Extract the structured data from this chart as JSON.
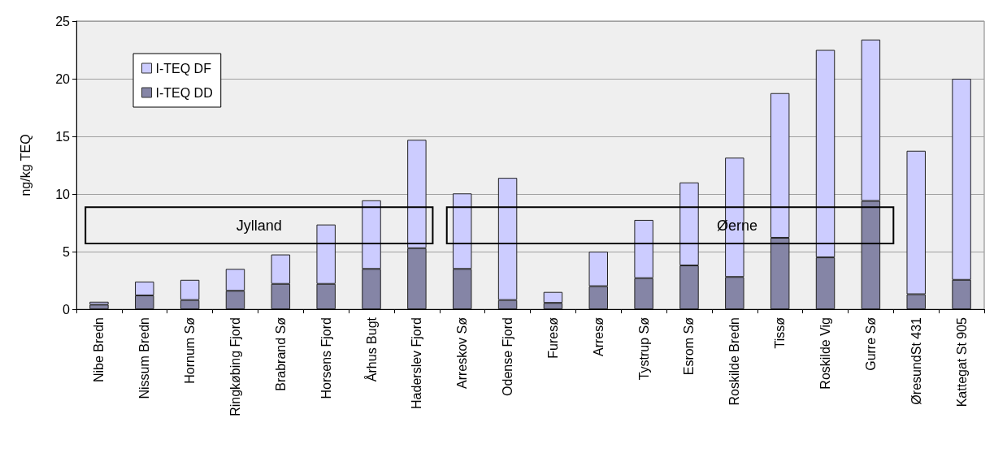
{
  "chart_data": {
    "type": "bar",
    "stacked": true,
    "ylabel": "ng/kg TEQ",
    "categories": [
      "Nibe Bredn",
      "Nissum Bredn",
      "Hornum Sø",
      "Ringkøbing Fjord",
      "Brabrand Sø",
      "Horsens Fjord",
      "Århus Bugt",
      "Haderslev Fjord",
      "Arreskov Sø",
      "Odense Fjord",
      "Furesø",
      "Arresø",
      "Tystrup Sø",
      "Esrom Sø",
      "Roskilde Bredn",
      "Tissø",
      "Roskilde Vig",
      "Gurre Sø",
      "ØresundSt 431",
      "Kattegat St 905"
    ],
    "series": [
      {
        "name": "I-TEQ DD",
        "color": "#8585a6",
        "values": [
          0.4,
          1.2,
          0.8,
          1.6,
          2.2,
          2.2,
          3.5,
          5.3,
          3.5,
          0.8,
          0.55,
          2.0,
          2.7,
          3.8,
          2.8,
          6.2,
          4.5,
          9.4,
          1.3,
          2.55
        ]
      },
      {
        "name": "I-TEQ DF",
        "color": "#ccccff",
        "values": [
          0.25,
          1.2,
          1.75,
          1.9,
          2.55,
          5.15,
          5.95,
          9.4,
          6.55,
          10.6,
          0.95,
          3.0,
          5.05,
          7.2,
          10.35,
          12.55,
          18.0,
          14.0,
          12.45,
          17.45
        ]
      }
    ],
    "ylim": [
      0,
      25
    ],
    "yticks": [
      0,
      5,
      10,
      15,
      20,
      25
    ],
    "grid": "y",
    "legend": "top left",
    "annotations": [
      "Jylland",
      "Øerne"
    ]
  }
}
